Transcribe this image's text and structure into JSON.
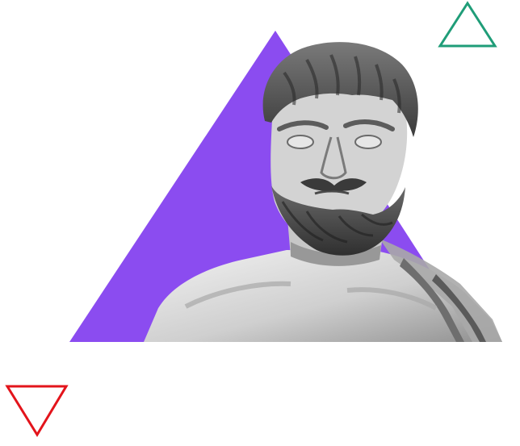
{
  "colors": {
    "background": "#ffffff",
    "purple_triangle": "#8b4cf0",
    "green_triangle_outline": "#1f9d78",
    "red_triangle_outline": "#e3141b",
    "bust_light": "#d9d9d9",
    "bust_mid": "#9d9d9d",
    "bust_dark": "#3f3f3f"
  },
  "decorations": {
    "purple_triangle": "solid-triangle",
    "green_triangle": "outline-triangle",
    "red_triangle": "outline-inverted-triangle"
  },
  "image": {
    "subject": "marble-bust-bearded-man"
  }
}
